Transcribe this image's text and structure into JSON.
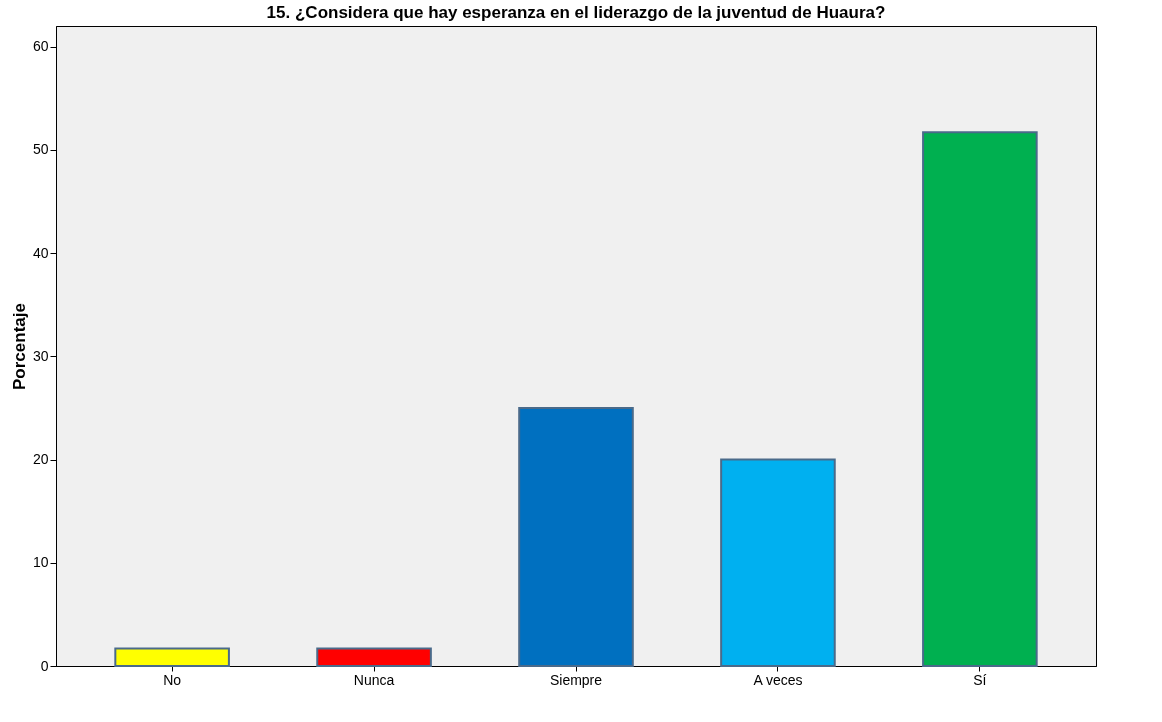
{
  "chart_data": {
    "type": "bar",
    "title": "15. ¿Considera que hay esperanza en el liderazgo de la juventud de Huaura?",
    "ylabel": "Porcentaje",
    "categories": [
      "No",
      "Nunca",
      "Siempre",
      "A veces",
      "Sí"
    ],
    "values": [
      1.7,
      1.7,
      25.0,
      20.0,
      51.7
    ],
    "colors": [
      "#ffff00",
      "#ff0000",
      "#0070c0",
      "#00b0f0",
      "#00b050"
    ],
    "ylim": [
      0,
      62
    ],
    "yticks": [
      0,
      10,
      20,
      30,
      40,
      50,
      60
    ],
    "grid": false
  }
}
